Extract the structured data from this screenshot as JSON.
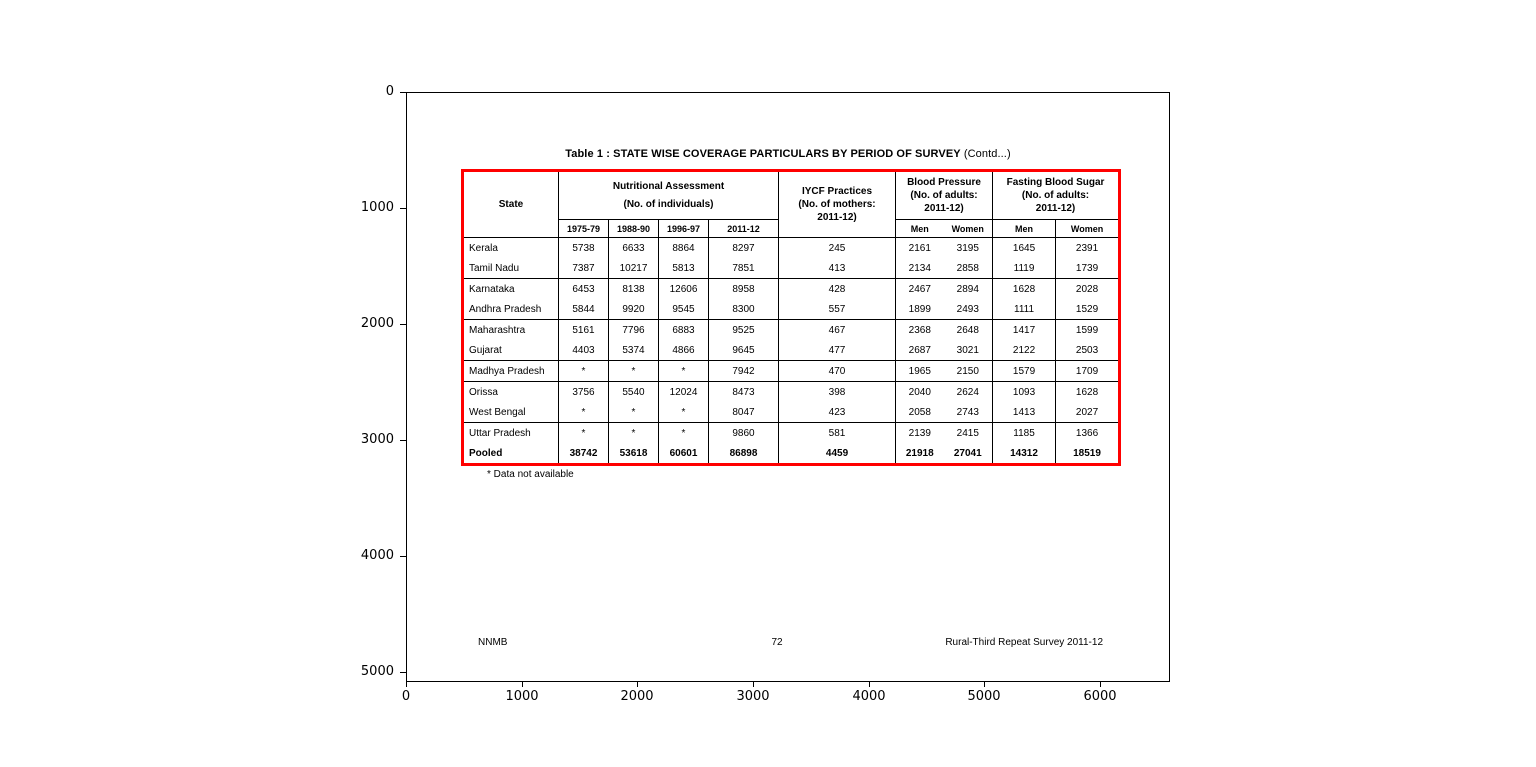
{
  "figure": {
    "x_ticks": [
      "0",
      "1000",
      "2000",
      "3000",
      "4000",
      "5000",
      "6000"
    ],
    "y_ticks": [
      "0",
      "1000",
      "2000",
      "3000",
      "4000",
      "5000"
    ]
  },
  "page": {
    "title_bold": "Table 1 : STATE WISE COVERAGE PARTICULARS BY PERIOD OF SURVEY",
    "title_suffix": " (Contd...)",
    "footnote": "* Data not available",
    "footer_left": "NNMB",
    "footer_center": "72",
    "footer_right": "Rural-Third Repeat Survey 2011-12",
    "table_border_color": "#ff0000"
  },
  "table": {
    "header": {
      "state": "State",
      "na_line1": "Nutritional Assessment",
      "na_line2": "(No. of individuals)",
      "years": [
        "1975-79",
        "1988-90",
        "1996-97",
        "2011-12"
      ],
      "iycf_line1": "IYCF Practices",
      "iycf_line2": "(No. of mothers:",
      "iycf_line3": "2011-12)",
      "bp_line1": "Blood Pressure",
      "bp_line2": "(No. of adults:",
      "bp_line3": "2011-12)",
      "fbs_line1": "Fasting Blood Sugar",
      "fbs_line2": "(No. of adults:",
      "fbs_line3": "2011-12)",
      "men": "Men",
      "women": "Women"
    },
    "rows": [
      {
        "state": "Kerala",
        "cells": [
          "5738",
          "6633",
          "8864",
          "8297",
          "245",
          "2161",
          "3195",
          "1645",
          "2391"
        ],
        "bold": false,
        "rule_above": false
      },
      {
        "state": "Tamil Nadu",
        "cells": [
          "7387",
          "10217",
          "5813",
          "7851",
          "413",
          "2134",
          "2858",
          "1119",
          "1739"
        ],
        "bold": false,
        "rule_above": false
      },
      {
        "state": "Karnataka",
        "cells": [
          "6453",
          "8138",
          "12606",
          "8958",
          "428",
          "2467",
          "2894",
          "1628",
          "2028"
        ],
        "bold": false,
        "rule_above": true
      },
      {
        "state": "Andhra Pradesh",
        "cells": [
          "5844",
          "9920",
          "9545",
          "8300",
          "557",
          "1899",
          "2493",
          "1111",
          "1529"
        ],
        "bold": false,
        "rule_above": false
      },
      {
        "state": "Maharashtra",
        "cells": [
          "5161",
          "7796",
          "6883",
          "9525",
          "467",
          "2368",
          "2648",
          "1417",
          "1599"
        ],
        "bold": false,
        "rule_above": true
      },
      {
        "state": "Gujarat",
        "cells": [
          "4403",
          "5374",
          "4866",
          "9645",
          "477",
          "2687",
          "3021",
          "2122",
          "2503"
        ],
        "bold": false,
        "rule_above": false
      },
      {
        "state": "Madhya Pradesh",
        "cells": [
          "*",
          "*",
          "*",
          "7942",
          "470",
          "1965",
          "2150",
          "1579",
          "1709"
        ],
        "bold": false,
        "rule_above": true
      },
      {
        "state": "Orissa",
        "cells": [
          "3756",
          "5540",
          "12024",
          "8473",
          "398",
          "2040",
          "2624",
          "1093",
          "1628"
        ],
        "bold": false,
        "rule_above": true
      },
      {
        "state": "West Bengal",
        "cells": [
          "*",
          "*",
          "*",
          "8047",
          "423",
          "2058",
          "2743",
          "1413",
          "2027"
        ],
        "bold": false,
        "rule_above": false
      },
      {
        "state": "Uttar Pradesh",
        "cells": [
          "*",
          "*",
          "*",
          "9860",
          "581",
          "2139",
          "2415",
          "1185",
          "1366"
        ],
        "bold": false,
        "rule_above": true
      },
      {
        "state": "Pooled",
        "cells": [
          "38742",
          "53618",
          "60601",
          "86898",
          "4459",
          "21918",
          "27041",
          "14312",
          "18519"
        ],
        "bold": true,
        "rule_above": false
      }
    ]
  },
  "chart_data": {
    "type": "table",
    "title": "Table 1 : STATE WISE COVERAGE PARTICULARS BY PERIOD OF SURVEY (Contd...)",
    "columns": [
      "State",
      "Nutritional Assessment (No. of individuals) 1975-79",
      "Nutritional Assessment (No. of individuals) 1988-90",
      "Nutritional Assessment (No. of individuals) 1996-97",
      "Nutritional Assessment (No. of individuals) 2011-12",
      "IYCF Practices (No. of mothers: 2011-12)",
      "Blood Pressure Men (No. of adults: 2011-12)",
      "Blood Pressure Women (No. of adults: 2011-12)",
      "Fasting Blood Sugar Men (No. of adults: 2011-12)",
      "Fasting Blood Sugar Women (No. of adults: 2011-12)"
    ],
    "rows": [
      [
        "Kerala",
        5738,
        6633,
        8864,
        8297,
        245,
        2161,
        3195,
        1645,
        2391
      ],
      [
        "Tamil Nadu",
        7387,
        10217,
        5813,
        7851,
        413,
        2134,
        2858,
        1119,
        1739
      ],
      [
        "Karnataka",
        6453,
        8138,
        12606,
        8958,
        428,
        2467,
        2894,
        1628,
        2028
      ],
      [
        "Andhra Pradesh",
        5844,
        9920,
        9545,
        8300,
        557,
        1899,
        2493,
        1111,
        1529
      ],
      [
        "Maharashtra",
        5161,
        7796,
        6883,
        9525,
        467,
        2368,
        2648,
        1417,
        1599
      ],
      [
        "Gujarat",
        4403,
        5374,
        4866,
        9645,
        477,
        2687,
        3021,
        2122,
        2503
      ],
      [
        "Madhya Pradesh",
        "*",
        "*",
        "*",
        7942,
        470,
        1965,
        2150,
        1579,
        1709
      ],
      [
        "Orissa",
        3756,
        5540,
        12024,
        8473,
        398,
        2040,
        2624,
        1093,
        1628
      ],
      [
        "West Bengal",
        "*",
        "*",
        "*",
        8047,
        423,
        2058,
        2743,
        1413,
        2027
      ],
      [
        "Uttar Pradesh",
        "*",
        "*",
        "*",
        9860,
        581,
        2139,
        2415,
        1185,
        1366
      ],
      [
        "Pooled",
        38742,
        53618,
        60601,
        86898,
        4459,
        21918,
        27041,
        14312,
        18519
      ]
    ],
    "footnote": "* Data not available",
    "layout": {
      "x_axis_ticks": [
        0,
        1000,
        2000,
        3000,
        4000,
        5000,
        6000
      ],
      "y_axis_ticks": [
        0,
        1000,
        2000,
        3000,
        4000,
        5000
      ],
      "y_axis_inverted": true,
      "grid": false,
      "legend": "none"
    }
  }
}
